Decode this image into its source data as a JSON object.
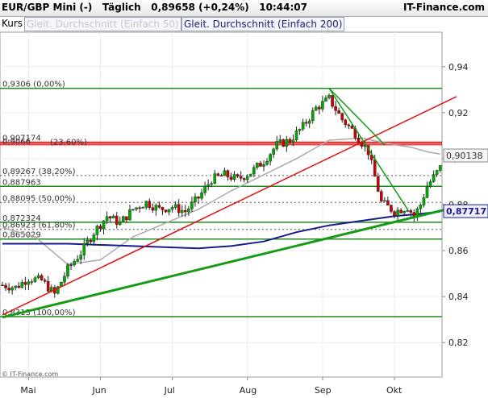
{
  "header": {
    "title": "EUR/GBP Mini (-)   Täglich   0,89658 (+0,24%)   10:44:07",
    "brand": "IT-Finance.com"
  },
  "legend": {
    "kurs": "Kurs",
    "sma50": "Gleit. Durchschnitt (Einfach 50)",
    "sma200": "Gleit. Durchschnitt (Einfach 200)"
  },
  "copyright": "© IT-Finance.com",
  "colors": {
    "candle_up": "#00aa00",
    "candle_down": "#cc0000",
    "sma50": "#aaaaaa",
    "sma200": "#1a1a8c",
    "uptrend": "#e01010",
    "support": "#169b16",
    "fib": "#1f8a1f"
  },
  "chart_data": {
    "type": "candlestick",
    "title": "EUR/GBP Mini (-) Täglich",
    "ylim": [
      0.805,
      0.955
    ],
    "y_ticks": [
      0.82,
      0.84,
      0.86,
      0.88,
      0.9,
      0.92,
      0.94
    ],
    "y_tick_labels": [
      "0,82",
      "0,84",
      "0,86",
      "0,88",
      "0,90",
      "0,92",
      "0,94"
    ],
    "x_tick_labels": [
      "Mai",
      "Jun",
      "Jul",
      "Aug",
      "Sep",
      "Okt"
    ],
    "x_tick_index": [
      8,
      30,
      52,
      75,
      98,
      120
    ],
    "num_days": 134,
    "close_path": [
      [
        0,
        0.845
      ],
      [
        4,
        0.844
      ],
      [
        8,
        0.848
      ],
      [
        12,
        0.847
      ],
      [
        16,
        0.841
      ],
      [
        20,
        0.852
      ],
      [
        24,
        0.859
      ],
      [
        28,
        0.868
      ],
      [
        32,
        0.875
      ],
      [
        36,
        0.872
      ],
      [
        40,
        0.878
      ],
      [
        44,
        0.881
      ],
      [
        48,
        0.878
      ],
      [
        52,
        0.879
      ],
      [
        56,
        0.877
      ],
      [
        60,
        0.883
      ],
      [
        64,
        0.891
      ],
      [
        68,
        0.893
      ],
      [
        72,
        0.891
      ],
      [
        76,
        0.894
      ],
      [
        80,
        0.899
      ],
      [
        84,
        0.906
      ],
      [
        88,
        0.908
      ],
      [
        92,
        0.914
      ],
      [
        96,
        0.922
      ],
      [
        100,
        0.926
      ],
      [
        104,
        0.917
      ],
      [
        108,
        0.911
      ],
      [
        112,
        0.903
      ],
      [
        116,
        0.881
      ],
      [
        120,
        0.877
      ],
      [
        124,
        0.879
      ],
      [
        126,
        0.875
      ],
      [
        128,
        0.88
      ],
      [
        130,
        0.888
      ],
      [
        132,
        0.892
      ],
      [
        134,
        0.896
      ]
    ],
    "sma50_path": [
      [
        0,
        0.87
      ],
      [
        10,
        0.866
      ],
      [
        20,
        0.854
      ],
      [
        30,
        0.856
      ],
      [
        40,
        0.866
      ],
      [
        50,
        0.872
      ],
      [
        60,
        0.878
      ],
      [
        70,
        0.886
      ],
      [
        80,
        0.893
      ],
      [
        90,
        0.9
      ],
      [
        100,
        0.908
      ],
      [
        110,
        0.909
      ],
      [
        120,
        0.906
      ],
      [
        125,
        0.905
      ],
      [
        130,
        0.903
      ],
      [
        134,
        0.902
      ]
    ],
    "sma200_path": [
      [
        0,
        0.863
      ],
      [
        20,
        0.863
      ],
      [
        40,
        0.862
      ],
      [
        60,
        0.861
      ],
      [
        70,
        0.862
      ],
      [
        80,
        0.864
      ],
      [
        90,
        0.868
      ],
      [
        100,
        0.871
      ],
      [
        110,
        0.873
      ],
      [
        120,
        0.875
      ],
      [
        128,
        0.876
      ],
      [
        134,
        0.877
      ]
    ],
    "trendlines": [
      {
        "name": "uptrend",
        "from": [
          0,
          0.832
        ],
        "to": [
          139,
          0.927
        ]
      },
      {
        "name": "support",
        "from": [
          0,
          0.831
        ],
        "to": [
          139,
          0.879
        ]
      },
      {
        "name": "fan-1",
        "from": [
          100,
          0.9306
        ],
        "to": [
          117,
          0.906
        ]
      },
      {
        "name": "fan-2",
        "from": [
          100,
          0.9306
        ],
        "to": [
          124,
          0.878
        ]
      }
    ],
    "fib_levels": [
      {
        "value": 0.9306,
        "label": "0,9306 (0,00%)"
      },
      {
        "value": 0.907174,
        "label": "0,907174"
      },
      {
        "value": 0.9066,
        "label": "0,9066"
      },
      {
        "value": 0.9054,
        "label": "(23,60%)"
      },
      {
        "value": 0.89267,
        "label": "0,89267 (38,20%)"
      },
      {
        "value": 0.887963,
        "label": "0,887963"
      },
      {
        "value": 0.88095,
        "label": "0,88095 (50,00%)"
      },
      {
        "value": 0.872324,
        "label": "0,872324"
      },
      {
        "value": 0.86923,
        "label": "0,86923 (61,80%)"
      },
      {
        "value": 0.865029,
        "label": "0,865029"
      },
      {
        "value": 0.8313,
        "label": "0,8313 (100,00%)"
      }
    ],
    "red_levels": [
      0.9072,
      0.9066,
      0.906
    ],
    "green_levels": [
      0.9306,
      0.887963,
      0.872324,
      0.865029,
      0.8313
    ],
    "dotted_levels": [
      0.89267,
      0.88095,
      0.86923
    ],
    "price_markers": [
      {
        "value": 0.90138,
        "label": "0,90138",
        "kind": "sma50"
      },
      {
        "value": 0.87717,
        "label": "0,87717",
        "kind": "sma200"
      }
    ]
  }
}
